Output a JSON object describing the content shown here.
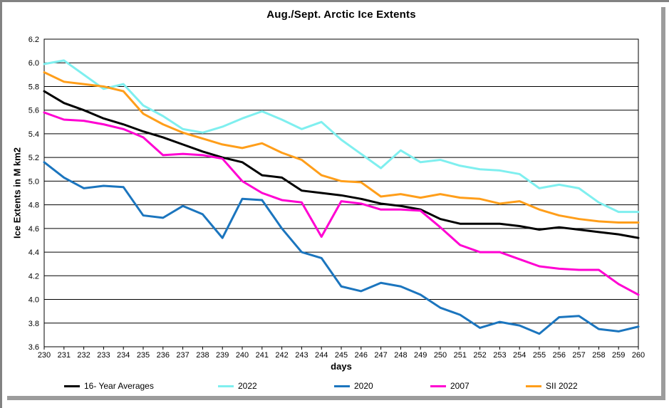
{
  "window": {
    "frame_color": "#828282",
    "shadow_color": "#9C9C9C",
    "background": "#FFFFFF",
    "gridline_color": "#000000"
  },
  "chart_data": {
    "type": "line",
    "title": "Aug./Sept. Arctic Ice Extents",
    "xlabel": "days",
    "ylabel": "Ice Extents in M km2",
    "xlim": [
      230,
      260
    ],
    "ylim": [
      3.6,
      6.2
    ],
    "y_step": 0.2,
    "grid": "horizontal-only",
    "legend_position": "bottom",
    "x": [
      230,
      231,
      232,
      233,
      234,
      235,
      236,
      237,
      238,
      239,
      240,
      241,
      242,
      243,
      244,
      245,
      246,
      247,
      248,
      249,
      250,
      251,
      252,
      253,
      254,
      255,
      256,
      257,
      258,
      259,
      260
    ],
    "y_ticks": [
      3.6,
      3.8,
      4.0,
      4.2,
      4.4,
      4.6,
      4.8,
      5.0,
      5.2,
      5.4,
      5.6,
      5.8,
      6.0,
      6.2
    ],
    "series": [
      {
        "name": "16- Year Averages",
        "color": "#000000",
        "values": [
          5.76,
          5.66,
          5.6,
          5.53,
          5.48,
          5.42,
          5.37,
          5.31,
          5.25,
          5.2,
          5.16,
          5.05,
          5.03,
          4.92,
          4.9,
          4.88,
          4.85,
          4.81,
          4.79,
          4.76,
          4.68,
          4.64,
          4.64,
          4.64,
          4.62,
          4.59,
          4.61,
          4.59,
          4.57,
          4.55,
          4.52
        ]
      },
      {
        "name": "2022",
        "color": "#7FEFEF",
        "values": [
          5.99,
          6.02,
          5.9,
          5.78,
          5.82,
          5.64,
          5.55,
          5.44,
          5.41,
          5.46,
          5.53,
          5.59,
          5.52,
          5.44,
          5.5,
          5.35,
          5.23,
          5.11,
          5.26,
          5.16,
          5.18,
          5.13,
          5.1,
          5.09,
          5.06,
          4.94,
          4.97,
          4.94,
          4.82,
          4.74,
          4.74
        ]
      },
      {
        "name": "2020",
        "color": "#1B75BE",
        "values": [
          5.16,
          5.03,
          4.94,
          4.96,
          4.95,
          4.71,
          4.69,
          4.79,
          4.72,
          4.52,
          4.85,
          4.84,
          4.6,
          4.4,
          4.35,
          4.11,
          4.07,
          4.14,
          4.11,
          4.04,
          3.93,
          3.87,
          3.76,
          3.81,
          3.78,
          3.71,
          3.85,
          3.86,
          3.75,
          3.73,
          3.77
        ]
      },
      {
        "name": "2007",
        "color": "#FF00D2",
        "values": [
          5.58,
          5.52,
          5.51,
          5.48,
          5.44,
          5.37,
          5.22,
          5.23,
          5.22,
          5.19,
          5.0,
          4.9,
          4.84,
          4.82,
          4.53,
          4.83,
          4.81,
          4.76,
          4.76,
          4.75,
          4.61,
          4.46,
          4.4,
          4.4,
          4.34,
          4.28,
          4.26,
          4.25,
          4.25,
          4.13,
          4.04
        ]
      },
      {
        "name": "SII 2022",
        "color": "#FF9E1A",
        "values": [
          5.92,
          5.84,
          5.82,
          5.8,
          5.76,
          5.57,
          5.48,
          5.41,
          5.36,
          5.31,
          5.28,
          5.32,
          5.24,
          5.18,
          5.05,
          5.0,
          4.99,
          4.87,
          4.89,
          4.86,
          4.89,
          4.86,
          4.85,
          4.81,
          4.83,
          4.76,
          4.71,
          4.68,
          4.66,
          4.65,
          4.65
        ]
      }
    ]
  }
}
